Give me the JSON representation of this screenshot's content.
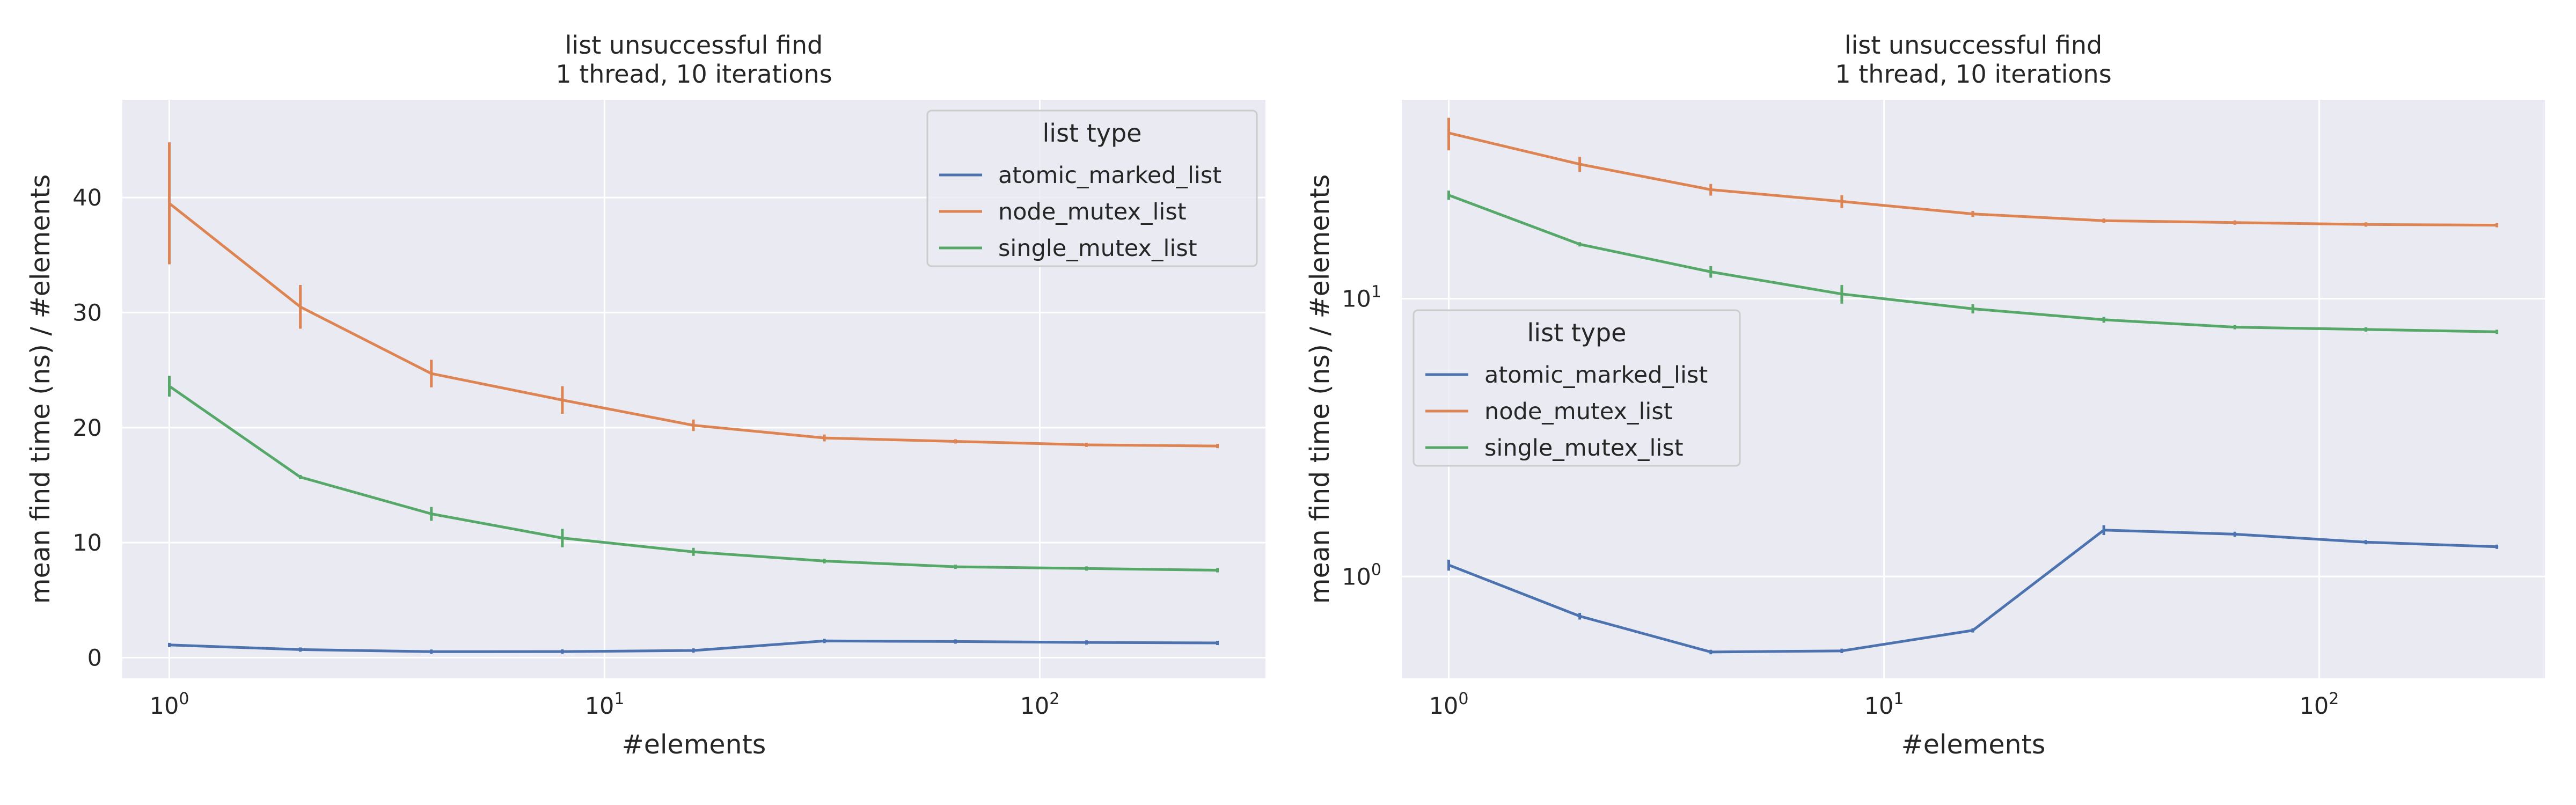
{
  "colors": {
    "atomic_marked_list": "#4c72b0",
    "node_mutex_list": "#dd8452",
    "single_mutex_list": "#55a868",
    "plot_background": "#eaeaf2",
    "grid": "#ffffff"
  },
  "chart_data": [
    {
      "type": "line",
      "title_lines": [
        "list unsuccessful find",
        "1 thread, 10 iterations"
      ],
      "xlabel": "#elements",
      "ylabel": "mean find time (ns) / #elements",
      "x_scale": "log",
      "y_scale": "linear",
      "xlim": [
        0.78,
        330
      ],
      "ylim": [
        -1.8,
        48.5
      ],
      "x_ticks": [
        {
          "value": 1,
          "base": "10",
          "exp": "0"
        },
        {
          "value": 10,
          "base": "10",
          "exp": "1"
        },
        {
          "value": 100,
          "base": "10",
          "exp": "2"
        }
      ],
      "y_ticks": [
        {
          "value": 0,
          "label": "0"
        },
        {
          "value": 10,
          "label": "10"
        },
        {
          "value": 20,
          "label": "20"
        },
        {
          "value": 30,
          "label": "30"
        },
        {
          "value": 40,
          "label": "40"
        }
      ],
      "grid": true,
      "legend": {
        "title": "list type",
        "placement": "top-right"
      },
      "x": [
        1,
        2,
        4,
        8,
        16,
        32,
        64,
        128,
        256
      ],
      "series": [
        {
          "name": "atomic_marked_list",
          "color_key": "atomic_marked_list",
          "values": [
            1.1,
            0.7,
            0.52,
            0.53,
            0.62,
            1.45,
            1.4,
            1.32,
            1.28
          ],
          "err": [
            0.05,
            0.03,
            0.02,
            0.02,
            0.02,
            0.07,
            0.04,
            0.03,
            0.03
          ]
        },
        {
          "name": "node_mutex_list",
          "color_key": "node_mutex_list",
          "values": [
            39.5,
            30.5,
            24.7,
            22.4,
            20.2,
            19.1,
            18.8,
            18.5,
            18.4
          ],
          "err": [
            5.3,
            1.9,
            1.2,
            1.2,
            0.5,
            0.3,
            0.15,
            0.1,
            0.1
          ]
        },
        {
          "name": "single_mutex_list",
          "color_key": "single_mutex_list",
          "values": [
            23.6,
            15.7,
            12.5,
            10.4,
            9.2,
            8.4,
            7.9,
            7.75,
            7.6
          ],
          "err": [
            0.9,
            0.1,
            0.6,
            0.8,
            0.35,
            0.2,
            0.1,
            0.1,
            0.05
          ]
        }
      ]
    },
    {
      "type": "line",
      "title_lines": [
        "list unsuccessful find",
        "1 thread, 10 iterations"
      ],
      "xlabel": "#elements",
      "ylabel": "mean find time (ns) / #elements",
      "x_scale": "log",
      "y_scale": "log",
      "xlim": [
        0.78,
        330
      ],
      "ylim": [
        0.43,
        52
      ],
      "x_ticks": [
        {
          "value": 1,
          "base": "10",
          "exp": "0"
        },
        {
          "value": 10,
          "base": "10",
          "exp": "1"
        },
        {
          "value": 100,
          "base": "10",
          "exp": "2"
        }
      ],
      "y_ticks": [
        {
          "value": 1,
          "base": "10",
          "exp": "0"
        },
        {
          "value": 10,
          "base": "10",
          "exp": "1"
        }
      ],
      "grid": true,
      "legend": {
        "title": "list type",
        "placement": "center-left"
      },
      "x": [
        1,
        2,
        4,
        8,
        16,
        32,
        64,
        128,
        256
      ],
      "series": [
        {
          "name": "atomic_marked_list",
          "color_key": "atomic_marked_list",
          "values": [
            1.1,
            0.72,
            0.535,
            0.54,
            0.64,
            1.47,
            1.42,
            1.33,
            1.28
          ],
          "err": [
            0.05,
            0.02,
            0.01,
            0.01,
            0.01,
            0.06,
            0.03,
            0.02,
            0.02
          ]
        },
        {
          "name": "node_mutex_list",
          "color_key": "node_mutex_list",
          "values": [
            39.5,
            30.5,
            24.7,
            22.4,
            20.2,
            19.1,
            18.8,
            18.5,
            18.4
          ],
          "err": [
            5.3,
            1.9,
            1.2,
            1.2,
            0.5,
            0.3,
            0.15,
            0.1,
            0.1
          ]
        },
        {
          "name": "single_mutex_list",
          "color_key": "single_mutex_list",
          "values": [
            23.6,
            15.7,
            12.5,
            10.4,
            9.2,
            8.4,
            7.9,
            7.75,
            7.6
          ],
          "err": [
            0.9,
            0.1,
            0.6,
            0.8,
            0.35,
            0.2,
            0.1,
            0.1,
            0.05
          ]
        }
      ]
    }
  ]
}
